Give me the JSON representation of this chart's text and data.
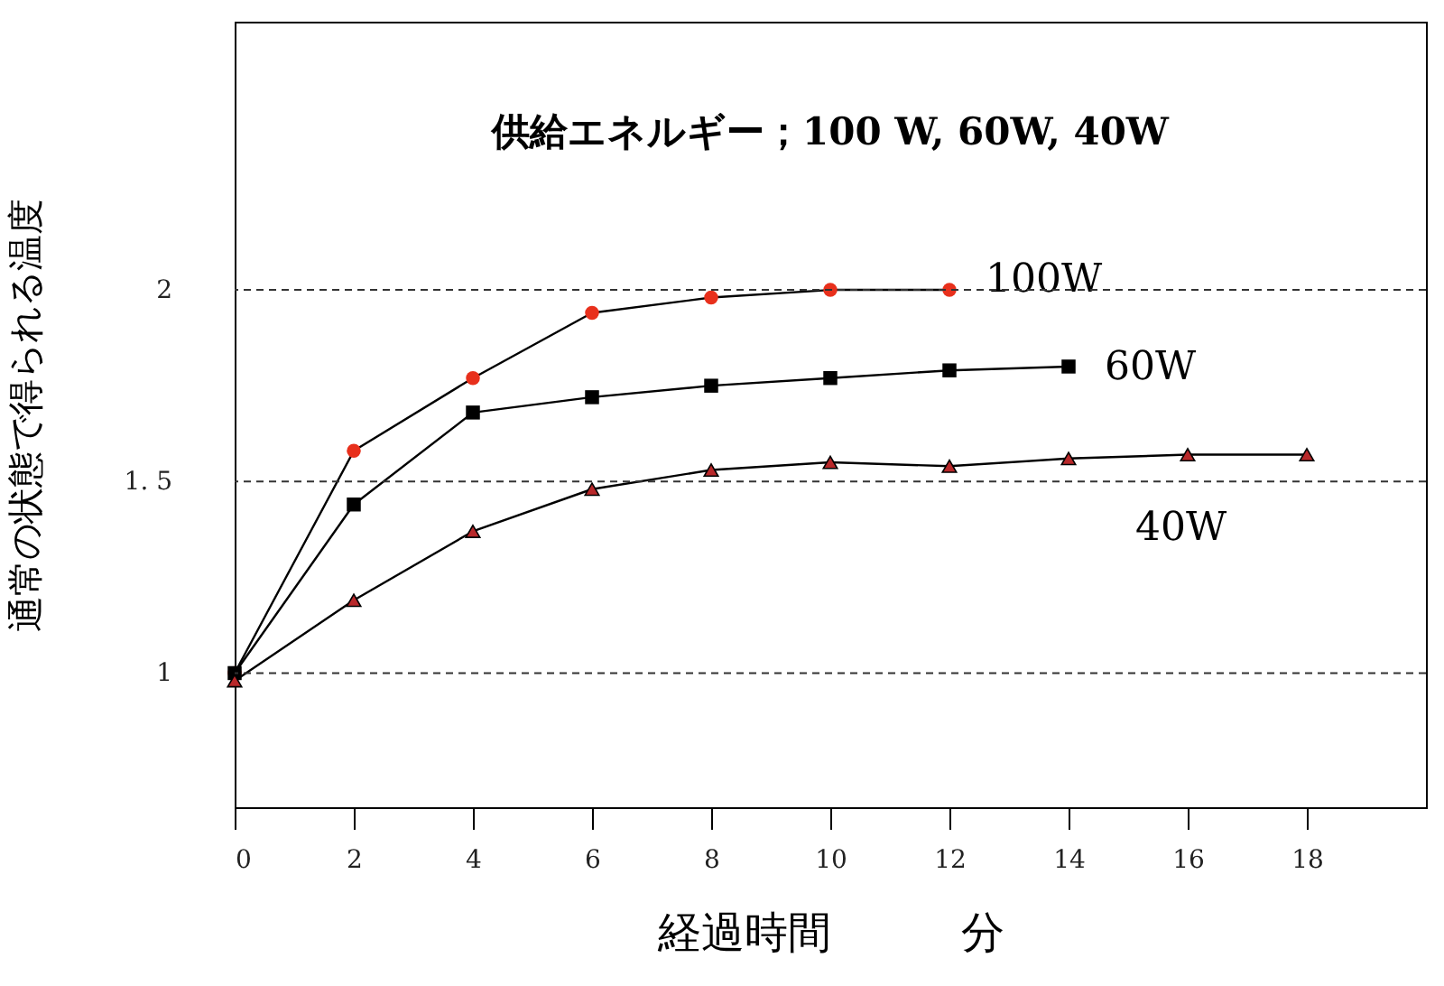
{
  "chart_data": {
    "type": "line",
    "title": "供給エネルギー；100 W, 60W, 40W",
    "xlabel": "経過時間　　　分",
    "ylabel": "通常の状態で得られる温度",
    "x": [
      0,
      2,
      4,
      6,
      8,
      10,
      12,
      14,
      16,
      18
    ],
    "series": [
      {
        "name": "100W",
        "color": "#e8301c",
        "marker": "circle",
        "values": [
          1.0,
          1.58,
          1.77,
          1.94,
          1.98,
          2.0,
          2.0,
          null,
          null,
          null
        ]
      },
      {
        "name": "60W",
        "color": "#000000",
        "marker": "square",
        "values": [
          1.0,
          1.44,
          1.68,
          1.72,
          1.75,
          1.77,
          1.79,
          1.8,
          null,
          null
        ]
      },
      {
        "name": "40W",
        "color": "#b8282a",
        "marker": "triangle",
        "values": [
          0.98,
          1.19,
          1.37,
          1.48,
          1.53,
          1.55,
          1.54,
          1.56,
          1.57,
          1.57
        ]
      }
    ],
    "xlim": [
      0,
      20
    ],
    "xticks": [
      0,
      2,
      4,
      6,
      8,
      10,
      12,
      14,
      16,
      18
    ],
    "ylim": [
      0.65,
      2.7
    ],
    "yticks": [
      1,
      {
        "value": 1.5,
        "label": "1. 5"
      },
      2
    ],
    "ref_lines": [
      {
        "axis": "y",
        "value": 1,
        "line_style": "dashed"
      },
      {
        "axis": "y",
        "value": 1.5,
        "line_style": "dashed"
      },
      {
        "axis": "y",
        "value": 2,
        "line_style": "dashed"
      }
    ],
    "grid": false,
    "legend": false,
    "line_style": "solid"
  }
}
